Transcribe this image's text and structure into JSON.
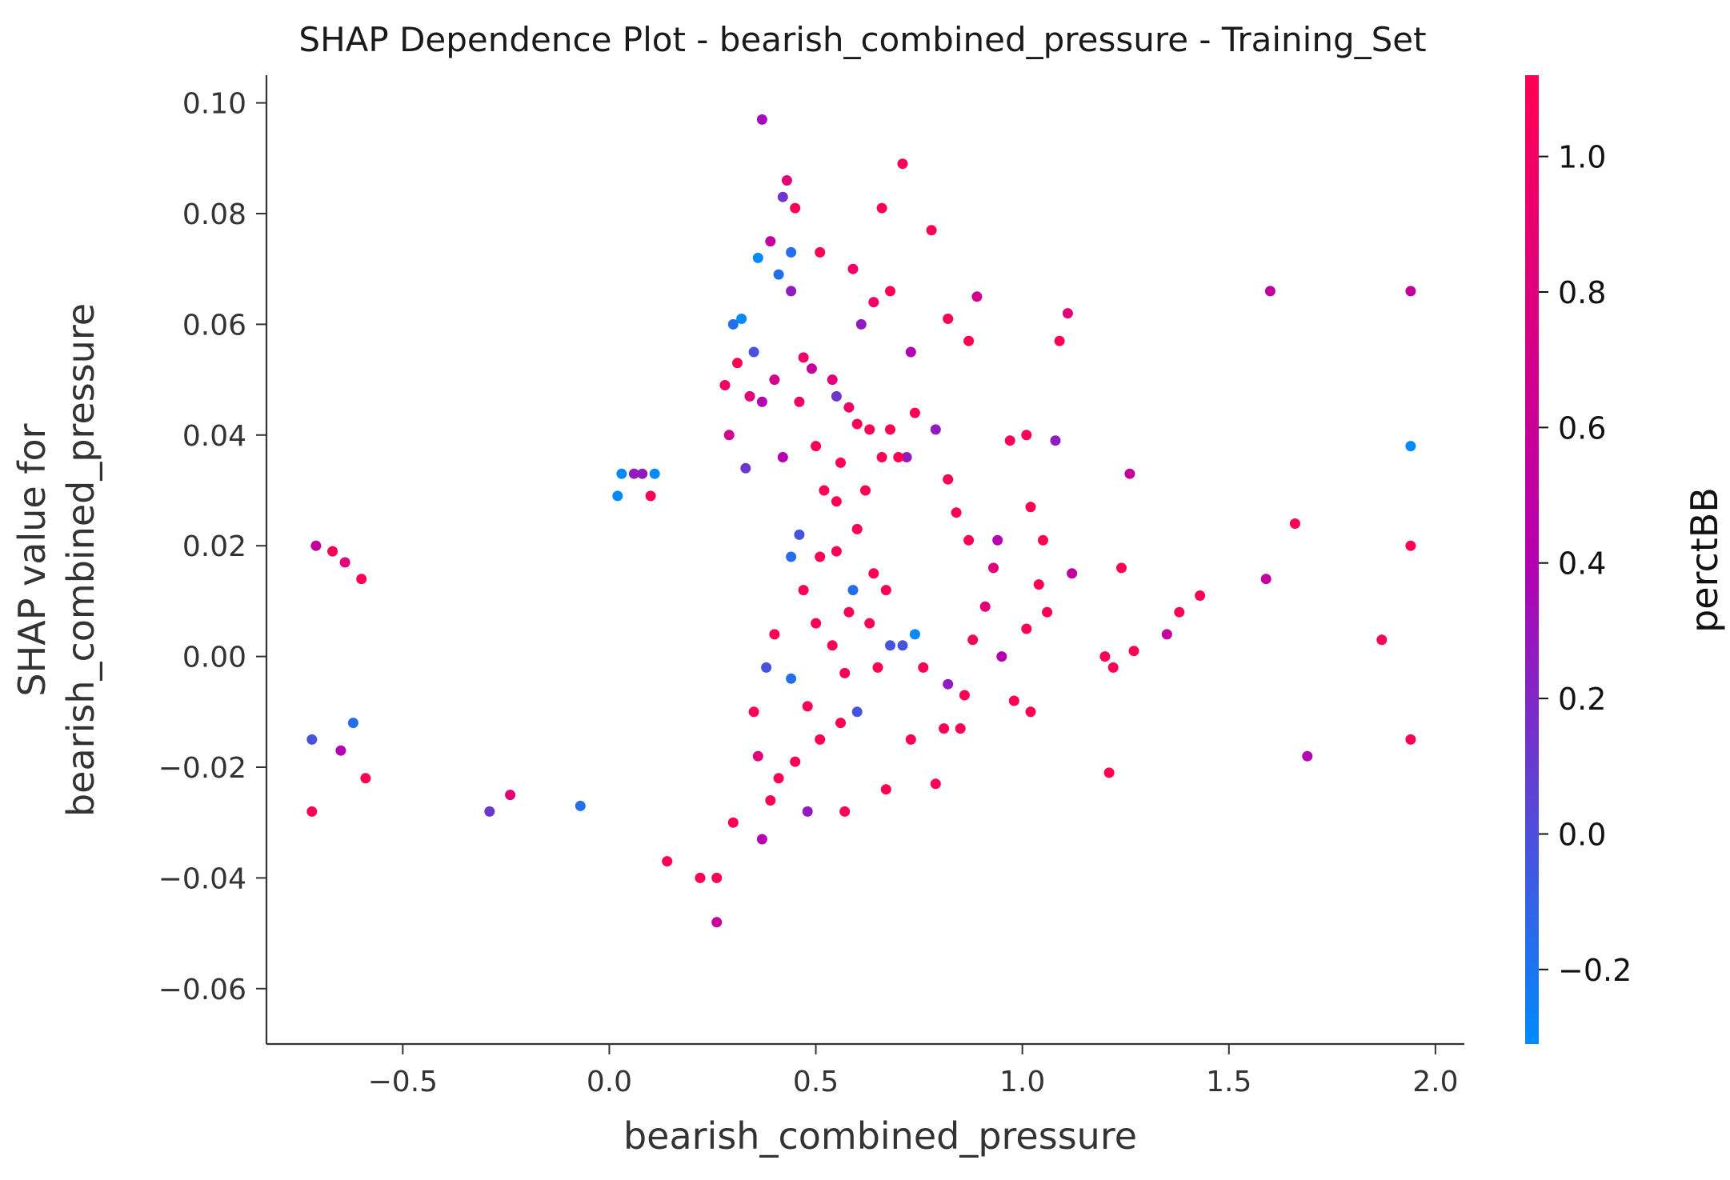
{
  "chart_data": {
    "type": "scatter",
    "title": "SHAP Dependence Plot - bearish_combined_pressure - Training_Set",
    "xlabel": "bearish_combined_pressure",
    "ylabel": [
      "SHAP value for",
      "bearish_combined_pressure"
    ],
    "xlim": [
      -0.83,
      2.07
    ],
    "ylim": [
      -0.07,
      0.105
    ],
    "x_ticks": [
      -0.5,
      0.0,
      0.5,
      1.0,
      1.5,
      2.0
    ],
    "x_tick_labels": [
      "−0.5",
      "0.0",
      "0.5",
      "1.0",
      "1.5",
      "2.0"
    ],
    "y_ticks": [
      0.1,
      0.08,
      0.06,
      0.04,
      0.02,
      0.0,
      -0.02,
      -0.04,
      -0.06
    ],
    "y_tick_labels": [
      "0.10",
      "0.08",
      "0.06",
      "0.04",
      "0.02",
      "0.00",
      "−0.02",
      "−0.04",
      "−0.06"
    ],
    "grid": false,
    "colorbar": {
      "label": "perctBB",
      "range": [
        -0.31,
        1.12
      ],
      "ticks": [
        1.0,
        0.8,
        0.6,
        0.4,
        0.2,
        0.0,
        -0.2
      ],
      "tick_labels": [
        "1.0",
        "0.8",
        "0.6",
        "0.4",
        "0.2",
        "0.0",
        "−0.2"
      ],
      "color_low": "#008afb",
      "color_mid": "#b400b0",
      "color_high": "#ff0052"
    },
    "points": [
      [
        0.37,
        0.097,
        0.45
      ],
      [
        0.71,
        0.089,
        0.95
      ],
      [
        0.43,
        0.086,
        0.8
      ],
      [
        0.42,
        0.083,
        0.3
      ],
      [
        0.45,
        0.081,
        1.0
      ],
      [
        0.66,
        0.081,
        1.0
      ],
      [
        0.78,
        0.077,
        1.0
      ],
      [
        0.39,
        0.075,
        0.6
      ],
      [
        0.44,
        0.073,
        0.1
      ],
      [
        0.36,
        0.072,
        0.0
      ],
      [
        0.51,
        0.073,
        1.0
      ],
      [
        0.41,
        0.069,
        0.1
      ],
      [
        0.59,
        0.07,
        0.9
      ],
      [
        0.44,
        0.066,
        0.4
      ],
      [
        0.68,
        0.066,
        1.0
      ],
      [
        0.64,
        0.064,
        0.9
      ],
      [
        0.89,
        0.065,
        0.7
      ],
      [
        1.11,
        0.062,
        0.8
      ],
      [
        1.6,
        0.066,
        0.6
      ],
      [
        1.94,
        0.066,
        0.6
      ],
      [
        0.82,
        0.061,
        1.0
      ],
      [
        0.32,
        0.061,
        0.0
      ],
      [
        0.3,
        0.06,
        0.1
      ],
      [
        0.61,
        0.06,
        0.4
      ],
      [
        0.87,
        0.057,
        1.0
      ],
      [
        1.09,
        0.057,
        1.0
      ],
      [
        0.73,
        0.055,
        0.5
      ],
      [
        0.35,
        0.055,
        0.2
      ],
      [
        0.47,
        0.054,
        0.9
      ],
      [
        0.55,
        0.047,
        0.3
      ],
      [
        1.08,
        0.039,
        0.4
      ],
      [
        0.97,
        0.039,
        1.0
      ],
      [
        1.01,
        0.04,
        1.0
      ],
      [
        1.94,
        0.038,
        0.0
      ],
      [
        1.26,
        0.033,
        0.6
      ],
      [
        0.79,
        0.041,
        0.4
      ],
      [
        0.74,
        0.044,
        1.0
      ],
      [
        0.82,
        0.032,
        1.0
      ],
      [
        0.72,
        0.036,
        0.4
      ],
      [
        1.02,
        0.027,
        1.0
      ],
      [
        0.84,
        0.026,
        1.0
      ],
      [
        0.87,
        0.021,
        1.0
      ],
      [
        0.94,
        0.021,
        0.5
      ],
      [
        1.05,
        0.021,
        1.0
      ],
      [
        1.24,
        0.016,
        1.0
      ],
      [
        1.12,
        0.015,
        0.6
      ],
      [
        1.04,
        0.013,
        1.0
      ],
      [
        0.93,
        0.016,
        0.8
      ],
      [
        1.66,
        0.024,
        1.0
      ],
      [
        1.94,
        0.02,
        1.0
      ],
      [
        1.59,
        0.014,
        0.6
      ],
      [
        1.43,
        0.011,
        1.0
      ],
      [
        1.38,
        0.008,
        1.0
      ],
      [
        1.35,
        0.004,
        0.6
      ],
      [
        1.27,
        0.001,
        1.0
      ],
      [
        1.87,
        0.003,
        1.0
      ],
      [
        1.2,
        -0.0,
        1.0
      ],
      [
        1.22,
        -0.002,
        1.0
      ],
      [
        1.06,
        0.008,
        1.0
      ],
      [
        1.01,
        0.005,
        1.0
      ],
      [
        0.95,
        -0.0,
        0.5
      ],
      [
        0.88,
        0.003,
        1.0
      ],
      [
        0.91,
        0.009,
        0.8
      ],
      [
        0.98,
        -0.008,
        1.0
      ],
      [
        1.02,
        -0.01,
        1.0
      ],
      [
        0.86,
        -0.007,
        1.0
      ],
      [
        0.82,
        -0.005,
        0.4
      ],
      [
        0.74,
        0.004,
        0.0
      ],
      [
        0.71,
        0.002,
        0.2
      ],
      [
        0.76,
        -0.002,
        1.0
      ],
      [
        0.68,
        0.002,
        0.2
      ],
      [
        0.65,
        -0.002,
        1.0
      ],
      [
        0.73,
        -0.015,
        1.0
      ],
      [
        0.81,
        -0.013,
        1.0
      ],
      [
        0.85,
        -0.013,
        1.0
      ],
      [
        0.79,
        -0.023,
        1.0
      ],
      [
        0.67,
        -0.024,
        1.0
      ],
      [
        0.57,
        -0.028,
        1.0
      ],
      [
        1.21,
        -0.021,
        1.0
      ],
      [
        1.69,
        -0.018,
        0.5
      ],
      [
        1.94,
        -0.015,
        1.0
      ],
      [
        0.37,
        -0.033,
        0.5
      ],
      [
        0.26,
        -0.048,
        0.6
      ],
      [
        0.26,
        -0.04,
        1.0
      ],
      [
        0.22,
        -0.04,
        1.0
      ],
      [
        0.14,
        -0.037,
        1.0
      ],
      [
        0.3,
        -0.03,
        1.0
      ],
      [
        0.48,
        -0.028,
        0.4
      ],
      [
        -0.72,
        -0.028,
        1.0
      ],
      [
        -0.72,
        -0.015,
        0.2
      ],
      [
        -0.65,
        -0.017,
        0.5
      ],
      [
        -0.59,
        -0.022,
        1.0
      ],
      [
        -0.62,
        -0.012,
        0.1
      ],
      [
        -0.29,
        -0.028,
        0.3
      ],
      [
        -0.24,
        -0.025,
        0.8
      ],
      [
        -0.07,
        -0.027,
        0.1
      ],
      [
        -0.64,
        0.017,
        0.8
      ],
      [
        -0.67,
        0.019,
        1.0
      ],
      [
        -0.71,
        0.02,
        0.6
      ],
      [
        -0.6,
        0.014,
        1.0
      ],
      [
        0.03,
        0.033,
        0.0
      ],
      [
        0.06,
        0.033,
        0.4
      ],
      [
        0.08,
        0.033,
        0.4
      ],
      [
        0.11,
        0.033,
        0.0
      ],
      [
        0.02,
        0.029,
        0.0
      ],
      [
        0.1,
        0.029,
        1.0
      ],
      [
        0.37,
        0.046,
        0.5
      ],
      [
        0.31,
        0.053,
        1.0
      ],
      [
        0.49,
        0.052,
        0.6
      ],
      [
        0.54,
        0.05,
        0.8
      ],
      [
        0.58,
        0.045,
        0.9
      ],
      [
        0.63,
        0.041,
        1.0
      ],
      [
        0.68,
        0.041,
        1.0
      ],
      [
        0.6,
        0.042,
        1.0
      ],
      [
        0.56,
        0.035,
        1.0
      ],
      [
        0.52,
        0.03,
        1.0
      ],
      [
        0.62,
        0.03,
        1.0
      ],
      [
        0.66,
        0.036,
        1.0
      ],
      [
        0.7,
        0.036,
        1.0
      ],
      [
        0.46,
        0.046,
        0.9
      ],
      [
        0.4,
        0.05,
        0.7
      ],
      [
        0.34,
        0.047,
        0.8
      ],
      [
        0.28,
        0.049,
        0.9
      ],
      [
        0.29,
        0.04,
        0.7
      ],
      [
        0.33,
        0.034,
        0.3
      ],
      [
        0.42,
        0.036,
        0.5
      ],
      [
        0.5,
        0.038,
        1.0
      ],
      [
        0.55,
        0.028,
        1.0
      ],
      [
        0.6,
        0.023,
        1.0
      ],
      [
        0.64,
        0.015,
        1.0
      ],
      [
        0.67,
        0.012,
        1.0
      ],
      [
        0.63,
        0.006,
        1.0
      ],
      [
        0.58,
        0.008,
        1.0
      ],
      [
        0.59,
        0.012,
        0.1
      ],
      [
        0.55,
        0.019,
        1.0
      ],
      [
        0.51,
        0.018,
        1.0
      ],
      [
        0.46,
        0.022,
        0.2
      ],
      [
        0.44,
        0.018,
        0.1
      ],
      [
        0.47,
        0.012,
        1.0
      ],
      [
        0.5,
        0.006,
        1.0
      ],
      [
        0.54,
        0.002,
        1.0
      ],
      [
        0.57,
        -0.003,
        1.0
      ],
      [
        0.6,
        -0.01,
        0.2
      ],
      [
        0.56,
        -0.012,
        1.0
      ],
      [
        0.51,
        -0.015,
        1.0
      ],
      [
        0.48,
        -0.009,
        1.0
      ],
      [
        0.45,
        -0.019,
        1.0
      ],
      [
        0.41,
        -0.022,
        1.0
      ],
      [
        0.39,
        -0.026,
        1.0
      ],
      [
        0.36,
        -0.018,
        0.8
      ],
      [
        0.35,
        -0.01,
        1.0
      ],
      [
        0.38,
        -0.002,
        0.2
      ],
      [
        0.4,
        0.004,
        1.0
      ],
      [
        0.44,
        -0.004,
        0.1
      ]
    ]
  }
}
